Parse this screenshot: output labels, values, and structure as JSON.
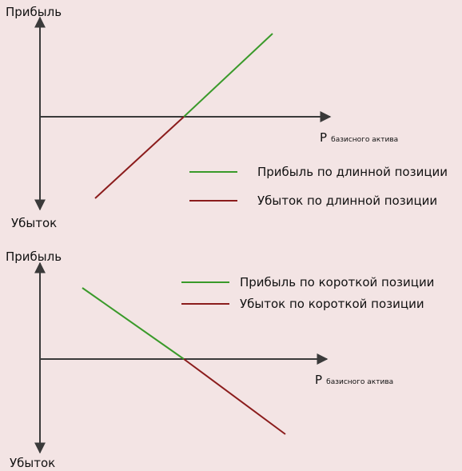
{
  "colors": {
    "background": "#f3e4e4",
    "axis": "#3a3a3a",
    "profit": "#3a9a2a",
    "loss": "#8b1c1c"
  },
  "top_chart": {
    "y_top_label": "Прибыль",
    "y_bottom_label": "Убыток",
    "x_label_main": "P",
    "x_label_sub": "базисного актива",
    "legend": {
      "profit": "Прибыль по длинной позиции",
      "loss": "Убыток по длинной позиции"
    }
  },
  "bottom_chart": {
    "y_top_label": "Прибыль",
    "y_bottom_label": "Убыток",
    "x_label_main": "P",
    "x_label_sub": "базисного актива",
    "legend": {
      "profit": "Прибыль по короткой позиции",
      "loss": "Убыток по короткой позиции"
    }
  }
}
